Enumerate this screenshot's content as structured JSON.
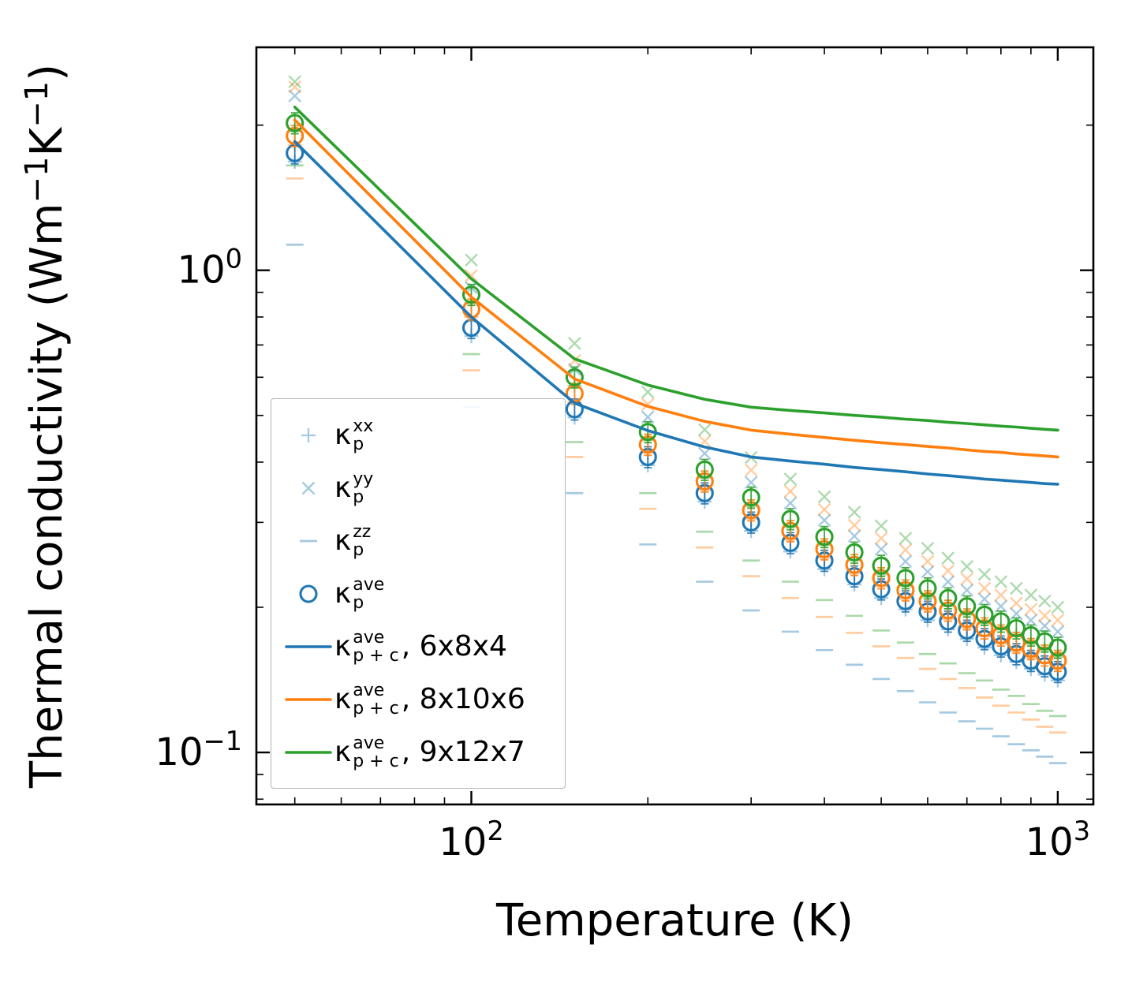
{
  "figure_name": "thermal-conductivity-vs-temperature",
  "chart_data": {
    "type": "line+scatter",
    "title": "",
    "xlabel": "Temperature (K)",
    "ylabel_parts": [
      {
        "t": "Thermal conductivity (Wm"
      },
      {
        "sup": "−1"
      },
      {
        "t": "K"
      },
      {
        "sup": "−1"
      },
      {
        "t": ")"
      }
    ],
    "xscale": "log",
    "yscale": "log",
    "xlim": [
      43,
      1150
    ],
    "ylim": [
      0.078,
      2.9
    ],
    "grid": false,
    "background": "#ffffff",
    "x_major_ticks": [
      {
        "value": 100,
        "base": "10",
        "exp": "2"
      },
      {
        "value": 1000,
        "base": "10",
        "exp": "3"
      }
    ],
    "x_minor_ticks": [
      50,
      60,
      70,
      80,
      90,
      200,
      300,
      400,
      500,
      600,
      700,
      800,
      900
    ],
    "y_major_ticks": [
      {
        "value": 1,
        "base": "10",
        "exp": "0"
      },
      {
        "value": 0.1,
        "base": "10",
        "exp": "−1"
      }
    ],
    "y_minor_ticks": [
      0.08,
      0.09,
      0.2,
      0.3,
      0.4,
      0.5,
      0.6,
      0.7,
      0.8,
      0.9,
      2
    ],
    "colors": {
      "supercell_6x8x4": "#1f77b4",
      "supercell_8x10x6": "#ff7f0e",
      "supercell_9x12x7": "#2ca02c"
    },
    "temperatures": [
      50,
      100,
      150,
      200,
      250,
      300,
      350,
      400,
      450,
      500,
      550,
      600,
      650,
      700,
      750,
      800,
      850,
      900,
      950,
      1000
    ],
    "series": [
      {
        "id": "kp-zz-6x8x4",
        "name": "κp_zz 6x8x4",
        "marker": "dash",
        "color": "#1f77b4",
        "opacity": 0.4,
        "values": [
          1.13,
          0.52,
          0.345,
          0.27,
          0.226,
          0.197,
          0.178,
          0.163,
          0.152,
          0.142,
          0.134,
          0.127,
          0.121,
          0.116,
          0.112,
          0.108,
          0.104,
          0.101,
          0.098,
          0.095
        ]
      },
      {
        "id": "kp-zz-8x10x6",
        "name": "κp_zz 8x10x6",
        "marker": "dash",
        "color": "#ff7f0e",
        "opacity": 0.4,
        "values": [
          1.55,
          0.62,
          0.41,
          0.32,
          0.266,
          0.232,
          0.209,
          0.191,
          0.177,
          0.166,
          0.157,
          0.149,
          0.142,
          0.136,
          0.13,
          0.125,
          0.121,
          0.117,
          0.113,
          0.11
        ]
      },
      {
        "id": "kp-zz-9x12x7",
        "name": "κp_zz 9x12x7",
        "marker": "dash",
        "color": "#2ca02c",
        "opacity": 0.4,
        "values": [
          1.65,
          0.67,
          0.44,
          0.345,
          0.287,
          0.25,
          0.226,
          0.207,
          0.192,
          0.179,
          0.169,
          0.16,
          0.153,
          0.146,
          0.141,
          0.135,
          0.131,
          0.126,
          0.122,
          0.119
        ]
      },
      {
        "id": "kp-xx-6x8x4",
        "name": "κp_xx 6x8x4",
        "marker": "plus",
        "color": "#1f77b4",
        "opacity": 0.4,
        "values": [
          1.68,
          0.73,
          0.495,
          0.394,
          0.331,
          0.288,
          0.261,
          0.24,
          0.223,
          0.209,
          0.198,
          0.188,
          0.18,
          0.172,
          0.165,
          0.159,
          0.154,
          0.149,
          0.145,
          0.141
        ]
      },
      {
        "id": "kp-xx-8x10x6",
        "name": "κp_xx 8x10x6",
        "marker": "plus",
        "color": "#ff7f0e",
        "opacity": 0.4,
        "values": [
          1.82,
          0.8,
          0.533,
          0.418,
          0.35,
          0.305,
          0.276,
          0.253,
          0.235,
          0.221,
          0.208,
          0.198,
          0.189,
          0.181,
          0.174,
          0.168,
          0.162,
          0.157,
          0.153,
          0.149
        ]
      },
      {
        "id": "kp-xx-9x12x7",
        "name": "κp_xx 9x12x7",
        "marker": "plus",
        "color": "#2ca02c",
        "opacity": 0.4,
        "values": [
          1.94,
          0.855,
          0.576,
          0.444,
          0.371,
          0.324,
          0.293,
          0.269,
          0.25,
          0.234,
          0.221,
          0.21,
          0.201,
          0.193,
          0.185,
          0.18,
          0.174,
          0.168,
          0.163,
          0.158
        ]
      },
      {
        "id": "kp-yy-6x8x4",
        "name": "κp_yy 6x8x4",
        "marker": "x",
        "color": "#1f77b4",
        "opacity": 0.4,
        "values": [
          2.3,
          0.92,
          0.623,
          0.496,
          0.417,
          0.363,
          0.329,
          0.303,
          0.281,
          0.264,
          0.249,
          0.237,
          0.226,
          0.217,
          0.208,
          0.201,
          0.194,
          0.188,
          0.183,
          0.178
        ]
      },
      {
        "id": "kp-yy-8x10x6",
        "name": "κp_yy 8x10x6",
        "marker": "x",
        "color": "#ff7f0e",
        "opacity": 0.4,
        "values": [
          2.4,
          0.975,
          0.65,
          0.527,
          0.442,
          0.385,
          0.348,
          0.319,
          0.296,
          0.278,
          0.263,
          0.249,
          0.238,
          0.229,
          0.219,
          0.212,
          0.204,
          0.198,
          0.192,
          0.188
        ]
      },
      {
        "id": "kp-yy-9x12x7",
        "name": "κp_yy 9x12x7",
        "marker": "x",
        "color": "#2ca02c",
        "opacity": 0.4,
        "values": [
          2.46,
          1.05,
          0.705,
          0.559,
          0.467,
          0.409,
          0.369,
          0.339,
          0.315,
          0.295,
          0.278,
          0.265,
          0.253,
          0.243,
          0.234,
          0.226,
          0.219,
          0.212,
          0.206,
          0.2
        ]
      },
      {
        "id": "kp-ave-6x8x4",
        "name": "κp_ave 6x8x4",
        "marker": "circle",
        "color": "#1f77b4",
        "opacity": 1,
        "rel_err": 0.05,
        "values": [
          1.75,
          0.76,
          0.515,
          0.41,
          0.345,
          0.3,
          0.272,
          0.25,
          0.232,
          0.218,
          0.206,
          0.196,
          0.187,
          0.179,
          0.172,
          0.166,
          0.16,
          0.155,
          0.151,
          0.147
        ]
      },
      {
        "id": "kp-ave-8x10x6",
        "name": "κp_ave 8x10x6",
        "marker": "circle",
        "color": "#ff7f0e",
        "opacity": 1,
        "rel_err": 0.05,
        "values": [
          1.9,
          0.83,
          0.555,
          0.435,
          0.365,
          0.318,
          0.288,
          0.264,
          0.245,
          0.23,
          0.217,
          0.206,
          0.197,
          0.189,
          0.181,
          0.175,
          0.169,
          0.164,
          0.159,
          0.155
        ]
      },
      {
        "id": "kp-ave-9x12x7",
        "name": "κp_ave 9x12x7",
        "marker": "circle",
        "color": "#2ca02c",
        "opacity": 1,
        "rel_err": 0.05,
        "values": [
          2.02,
          0.89,
          0.6,
          0.462,
          0.386,
          0.338,
          0.305,
          0.28,
          0.26,
          0.244,
          0.23,
          0.219,
          0.209,
          0.201,
          0.193,
          0.187,
          0.181,
          0.175,
          0.17,
          0.165
        ]
      },
      {
        "id": "kpc-ave-6x8x4",
        "name": "κp+c_ave 6x8x4",
        "marker": "line",
        "color": "#1f77b4",
        "opacity": 1,
        "values": [
          1.85,
          0.8,
          0.53,
          0.465,
          0.43,
          0.41,
          0.402,
          0.396,
          0.39,
          0.386,
          0.382,
          0.378,
          0.375,
          0.372,
          0.369,
          0.367,
          0.365,
          0.363,
          0.361,
          0.36
        ]
      },
      {
        "id": "kpc-ave-8x10x6",
        "name": "κp+c_ave 8x10x6",
        "marker": "line",
        "color": "#ff7f0e",
        "opacity": 1,
        "values": [
          2.05,
          0.88,
          0.595,
          0.522,
          0.486,
          0.466,
          0.457,
          0.45,
          0.444,
          0.439,
          0.435,
          0.431,
          0.428,
          0.424,
          0.421,
          0.419,
          0.416,
          0.414,
          0.412,
          0.41
        ]
      },
      {
        "id": "kpc-ave-9x12x7",
        "name": "κp+c_ave 9x12x7",
        "marker": "line",
        "color": "#2ca02c",
        "opacity": 1,
        "values": [
          2.18,
          0.96,
          0.655,
          0.578,
          0.54,
          0.52,
          0.512,
          0.506,
          0.5,
          0.496,
          0.491,
          0.488,
          0.484,
          0.481,
          0.478,
          0.475,
          0.473,
          0.47,
          0.468,
          0.466
        ]
      }
    ],
    "legend": [
      {
        "marker": "plus",
        "color": "#1f77b4",
        "opacity": 0.4,
        "kappa": "κ",
        "sup": "xx",
        "sub": "p",
        "rest": ""
      },
      {
        "marker": "x",
        "color": "#1f77b4",
        "opacity": 0.4,
        "kappa": "κ",
        "sup": "yy",
        "sub": "p",
        "rest": ""
      },
      {
        "marker": "dash",
        "color": "#1f77b4",
        "opacity": 0.4,
        "kappa": "κ",
        "sup": "zz",
        "sub": "p",
        "rest": ""
      },
      {
        "marker": "circle",
        "color": "#1f77b4",
        "opacity": 1,
        "kappa": "κ",
        "sup": "ave",
        "sub": "p",
        "rest": ""
      },
      {
        "marker": "line",
        "color": "#1f77b4",
        "opacity": 1,
        "kappa": "κ",
        "sup": "ave",
        "sub": "p + c",
        "rest": ", 6x8x4"
      },
      {
        "marker": "line",
        "color": "#ff7f0e",
        "opacity": 1,
        "kappa": "κ",
        "sup": "ave",
        "sub": "p + c",
        "rest": ", 8x10x6"
      },
      {
        "marker": "line",
        "color": "#2ca02c",
        "opacity": 1,
        "kappa": "κ",
        "sup": "ave",
        "sub": "p + c",
        "rest": ", 9x12x7"
      }
    ]
  }
}
